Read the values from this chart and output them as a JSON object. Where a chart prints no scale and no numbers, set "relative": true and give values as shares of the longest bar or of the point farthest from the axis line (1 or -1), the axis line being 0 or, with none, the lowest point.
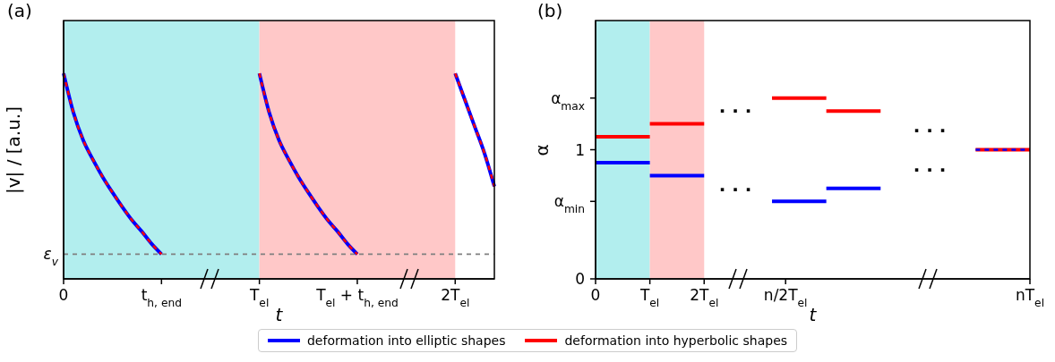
{
  "chart_data": [
    {
      "type": "line",
      "title": "(a)",
      "xlabel": "t",
      "ylabel": "|v| / [a.u.]",
      "relative": true,
      "legend": "bottom",
      "categories": [
        "0",
        null,
        null,
        null,
        null,
        null,
        null,
        null,
        null,
        null,
        "t$_{h, end}$",
        null,
        null,
        null,
        null,
        null,
        null,
        null,
        null,
        null,
        "T$_{el}$",
        null,
        null,
        null,
        null,
        null,
        null,
        null,
        null,
        null,
        "T$_{el}$ + t$_{h, end}$",
        null,
        null,
        null,
        null,
        null,
        null,
        null,
        null,
        null,
        "2T$_{el}$",
        null,
        null,
        null,
        null
      ],
      "ref_lines": [
        {
          "axis": "y",
          "value": 0.12,
          "label": "ε$_{v}$",
          "color": "#808080",
          "line_style": "dashed"
        }
      ],
      "bands": [
        {
          "axis": "x",
          "from": "0",
          "to": "T$_{el}$",
          "color": "#b2eeee"
        },
        {
          "axis": "x",
          "from": "T$_{el}$",
          "to": "2T$_{el}$",
          "color": "#ffc8c8"
        }
      ],
      "series": [
        {
          "name": "deformation into elliptic shapes",
          "color": "#0000ff",
          "line_style": "solid",
          "values": [
            1,
            0.81,
            0.675,
            0.58,
            0.495,
            0.42,
            0.35,
            0.285,
            0.23,
            0.17,
            0.12,
            null,
            null,
            null,
            null,
            null,
            null,
            null,
            null,
            null,
            1,
            0.81,
            0.675,
            0.58,
            0.495,
            0.42,
            0.35,
            0.285,
            0.23,
            0.17,
            0.12,
            null,
            null,
            null,
            null,
            null,
            null,
            null,
            null,
            null,
            1,
            0.87,
            0.74,
            0.61,
            0.45
          ]
        },
        {
          "name": "deformation into hyperbolic shapes",
          "color": "#ff0000",
          "line_style": "dashed",
          "values": [
            1,
            0.81,
            0.675,
            0.58,
            0.495,
            0.42,
            0.35,
            0.285,
            0.23,
            0.17,
            0.12,
            null,
            null,
            null,
            null,
            null,
            null,
            null,
            null,
            null,
            1,
            0.81,
            0.675,
            0.58,
            0.495,
            0.42,
            0.35,
            0.285,
            0.23,
            0.17,
            0.12,
            null,
            null,
            null,
            null,
            null,
            null,
            null,
            null,
            null,
            1,
            0.87,
            0.74,
            0.61,
            0.45
          ]
        }
      ]
    },
    {
      "type": "line",
      "title": "(b)",
      "xlabel": "t",
      "ylabel": "α",
      "categories": [
        "0",
        null,
        null,
        null,
        "T$_{el}$",
        null,
        null,
        null,
        "2T$_{el}$",
        null,
        null,
        null,
        null,
        null,
        "n/2T$_{el}$",
        null,
        null,
        null,
        null,
        null,
        null,
        null,
        null,
        null,
        null,
        null,
        null,
        null,
        null,
        null,
        null,
        null,
        "nT$_{el}$"
      ],
      "ylim": [
        0,
        2
      ],
      "yticks": [
        0,
        {
          "value": 0.6,
          "label": "α$_{min}$"
        },
        1,
        {
          "value": 1.4,
          "label": "α$_{max}$"
        }
      ],
      "bands": [
        {
          "axis": "x",
          "from": "0",
          "to": "T$_{el}$",
          "color": "#b2eeee"
        },
        {
          "axis": "x",
          "from": "T$_{el}$",
          "to": "2T$_{el}$",
          "color": "#ffc8c8"
        }
      ],
      "annotations": [
        "· · ·",
        "· · ·",
        "· · ·",
        "· · ·"
      ],
      "series": [
        {
          "color": "#ff0000",
          "line_style": "solid",
          "values": [
            1.1,
            1.1,
            1.1,
            1.1,
            1.1,
            null,
            null,
            null,
            null,
            null,
            null,
            null,
            null,
            null,
            null,
            null,
            null,
            null,
            null,
            null,
            null,
            null,
            null,
            null,
            null,
            null,
            null,
            null,
            null,
            null,
            null,
            null,
            null
          ]
        },
        {
          "color": "#ff0000",
          "line_style": "solid",
          "values": [
            null,
            null,
            null,
            null,
            1.2,
            1.2,
            1.2,
            1.2,
            1.2,
            null,
            null,
            null,
            null,
            null,
            null,
            null,
            null,
            null,
            null,
            null,
            null,
            null,
            null,
            null,
            null,
            null,
            null,
            null,
            null,
            null,
            null,
            null,
            null
          ]
        },
        {
          "color": "#ff0000",
          "line_style": "solid",
          "values": [
            null,
            null,
            null,
            null,
            null,
            null,
            null,
            null,
            null,
            null,
            null,
            null,
            null,
            1.4,
            1.4,
            1.4,
            1.4,
            1.4,
            null,
            null,
            null,
            null,
            null,
            null,
            null,
            null,
            null,
            null,
            null,
            null,
            null,
            null,
            null
          ]
        },
        {
          "color": "#ff0000",
          "line_style": "solid",
          "values": [
            null,
            null,
            null,
            null,
            null,
            null,
            null,
            null,
            null,
            null,
            null,
            null,
            null,
            null,
            null,
            null,
            null,
            1.3,
            1.3,
            1.3,
            1.3,
            1.3,
            null,
            null,
            null,
            null,
            null,
            null,
            null,
            null,
            null,
            null,
            null
          ]
        },
        {
          "color": "#ff0000",
          "line_style": "solid",
          "values": [
            null,
            null,
            null,
            null,
            null,
            null,
            null,
            null,
            null,
            null,
            null,
            null,
            null,
            null,
            null,
            null,
            null,
            null,
            null,
            null,
            null,
            null,
            null,
            null,
            null,
            null,
            null,
            null,
            1,
            1,
            1,
            1,
            1
          ]
        },
        {
          "color": "#0000ff",
          "line_style": "solid",
          "values": [
            0.9,
            0.9,
            0.9,
            0.9,
            0.9,
            null,
            null,
            null,
            null,
            null,
            null,
            null,
            null,
            null,
            null,
            null,
            null,
            null,
            null,
            null,
            null,
            null,
            null,
            null,
            null,
            null,
            null,
            null,
            null,
            null,
            null,
            null,
            null
          ]
        },
        {
          "color": "#0000ff",
          "line_style": "solid",
          "values": [
            null,
            null,
            null,
            null,
            0.8,
            0.8,
            0.8,
            0.8,
            0.8,
            null,
            null,
            null,
            null,
            null,
            null,
            null,
            null,
            null,
            null,
            null,
            null,
            null,
            null,
            null,
            null,
            null,
            null,
            null,
            null,
            null,
            null,
            null,
            null
          ]
        },
        {
          "color": "#0000ff",
          "line_style": "solid",
          "values": [
            null,
            null,
            null,
            null,
            null,
            null,
            null,
            null,
            null,
            null,
            null,
            null,
            null,
            0.6,
            0.6,
            0.6,
            0.6,
            0.6,
            null,
            null,
            null,
            null,
            null,
            null,
            null,
            null,
            null,
            null,
            null,
            null,
            null,
            null,
            null
          ]
        },
        {
          "color": "#0000ff",
          "line_style": "solid",
          "values": [
            null,
            null,
            null,
            null,
            null,
            null,
            null,
            null,
            null,
            null,
            null,
            null,
            null,
            null,
            null,
            null,
            null,
            0.7,
            0.7,
            0.7,
            0.7,
            0.7,
            null,
            null,
            null,
            null,
            null,
            null,
            null,
            null,
            null,
            null,
            null
          ]
        },
        {
          "color": "#0000ff",
          "line_style": "dashed",
          "values": [
            null,
            null,
            null,
            null,
            null,
            null,
            null,
            null,
            null,
            null,
            null,
            null,
            null,
            null,
            null,
            null,
            null,
            null,
            null,
            null,
            null,
            null,
            null,
            null,
            null,
            null,
            null,
            null,
            1,
            1,
            1,
            1,
            1
          ]
        }
      ]
    }
  ]
}
